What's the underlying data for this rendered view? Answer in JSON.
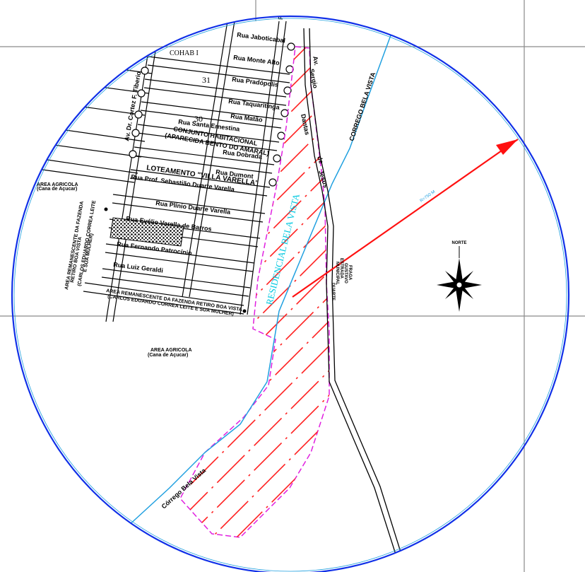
{
  "streets": {
    "jaboticabal": "Rua Jaboticabal",
    "monte_alto": "Rua Monte Alto",
    "pradopolis": "Rua Pradópolis",
    "taquaritinga": "Rua Taquaritinga",
    "matao": "Rua Matão",
    "sant_ernestina": "Rua Santa Ernestina",
    "dobrada": "Rua Dobrada",
    "dumont": "Rua Dumont",
    "prof_sebastiao": "Rua Prof. Sebastião Duarte Varella",
    "plinio": "Rua Plínio Duarte Varella",
    "evelio": "Rua Evélio Varella de Barros",
    "fernando": "Rua Fernando Patrocínio",
    "luiz": "Rua Luiz Geraldi",
    "av_cortez": "Av. Dr. Cortez F. Tiberio",
    "roma": "Roma",
    "av_sergio": [
      "Av.",
      "Sergio",
      "Dantas",
      "de",
      "Jesus"
    ],
    "estrada": [
      "ESTRADA",
      "MUNICIPAL",
      "DUARTE",
      "GUSTAVO",
      "FRAGA"
    ]
  },
  "labels": {
    "cohab": "COHAB I",
    "block31": "31",
    "block30": "30",
    "conjunto": [
      "CONJUNTO HABITACIONAL",
      "(APARECIDA BENTO DO AMARAL)"
    ],
    "loteamento": "LOTEAMENTO \"VILLA VARELLA\"",
    "residencial": "RESIDENCIAL BELA VISTA",
    "corrego_upper": "CORREGO BELA VISTA",
    "corrego_lower": "Córrego Bela Vista",
    "area_agricola_left": [
      "AREA AGRICOLA",
      "(Cana de Açucar)"
    ],
    "area_agricola_center": [
      "AREA AGRICOLA",
      "(Cana de Açucar)"
    ],
    "fazenda_left": [
      "AREA REMANESCENTE DA FAZENDA",
      "RETIRO BOA VISTA",
      "(CARLOS EDUARDO CORREA LEITE",
      "E SUA MULHER)"
    ],
    "fazenda_bottom": [
      "AREA REMANESCENTE DA FAZENDA RETIRO BOA VISTA",
      "(CARLOS EDUARDO CORREA LEITE E SUA MULHER)"
    ],
    "radius": "R=750 M",
    "north": "NORTE"
  },
  "colors": {
    "circle": "#1030e8",
    "radius_arrow": "#ff1010",
    "hatch": "#ff2020",
    "boundary": "#e020e0",
    "creek": "#20a0e0",
    "sheet_grid": "#8a8a8a",
    "roads": "#000000"
  }
}
